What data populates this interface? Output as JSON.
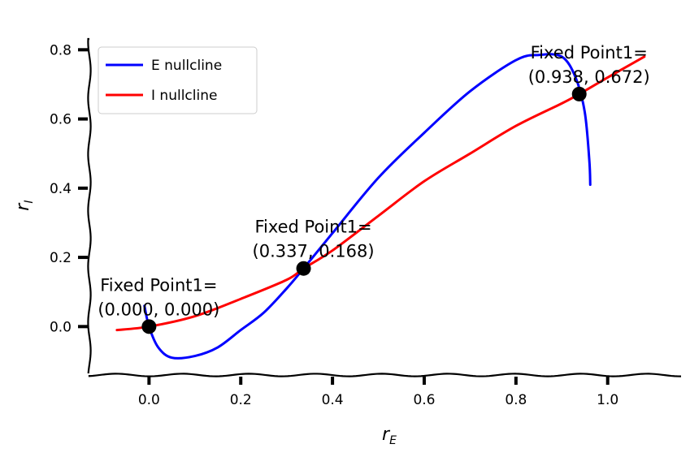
{
  "chart_data": {
    "type": "line",
    "xlabel": "r",
    "xlabel_sub": "E",
    "ylabel": "r",
    "ylabel_sub": "I",
    "xlim": [
      -0.13,
      1.16
    ],
    "ylim": [
      -0.14,
      0.85
    ],
    "x_ticks": [
      0.0,
      0.2,
      0.4,
      0.6,
      0.8,
      1.0
    ],
    "x_tick_labels": [
      "0.0",
      "0.2",
      "0.4",
      "0.6",
      "0.8",
      "1.0"
    ],
    "y_ticks": [
      0.0,
      0.2,
      0.4,
      0.6,
      0.8
    ],
    "y_tick_labels": [
      "0.0",
      "0.2",
      "0.4",
      "0.6",
      "0.8"
    ],
    "grid": false,
    "legend_position": "top-left",
    "series": [
      {
        "name": "E nullcline",
        "color": "#0000ff",
        "x": [
          -0.01,
          0.0,
          0.02,
          0.05,
          0.1,
          0.15,
          0.2,
          0.25,
          0.3,
          0.337,
          0.4,
          0.5,
          0.6,
          0.7,
          0.8,
          0.85,
          0.9,
          0.93,
          0.95,
          0.96,
          0.962
        ],
        "y": [
          0.06,
          0.0,
          -0.06,
          -0.09,
          -0.085,
          -0.06,
          -0.01,
          0.04,
          0.11,
          0.168,
          0.27,
          0.43,
          0.56,
          0.68,
          0.77,
          0.785,
          0.78,
          0.72,
          0.62,
          0.48,
          0.41
        ]
      },
      {
        "name": "I nullcline",
        "color": "#ff0000",
        "x": [
          -0.07,
          0.0,
          0.1,
          0.2,
          0.3,
          0.337,
          0.4,
          0.5,
          0.6,
          0.7,
          0.8,
          0.9,
          0.938,
          1.0,
          1.08
        ],
        "y": [
          -0.01,
          0.0,
          0.03,
          0.08,
          0.135,
          0.168,
          0.22,
          0.32,
          0.42,
          0.5,
          0.58,
          0.645,
          0.672,
          0.72,
          0.78
        ]
      }
    ],
    "fixed_points": [
      {
        "x": 0.0,
        "y": 0.0,
        "label_line1": "Fixed Point1=",
        "label_line2": "(0.000, 0.000)"
      },
      {
        "x": 0.337,
        "y": 0.168,
        "label_line1": "Fixed Point1=",
        "label_line2": "(0.337, 0.168)"
      },
      {
        "x": 0.938,
        "y": 0.672,
        "label_line1": "Fixed Point1=",
        "label_line2": "(0.938, 0.672)"
      }
    ]
  }
}
